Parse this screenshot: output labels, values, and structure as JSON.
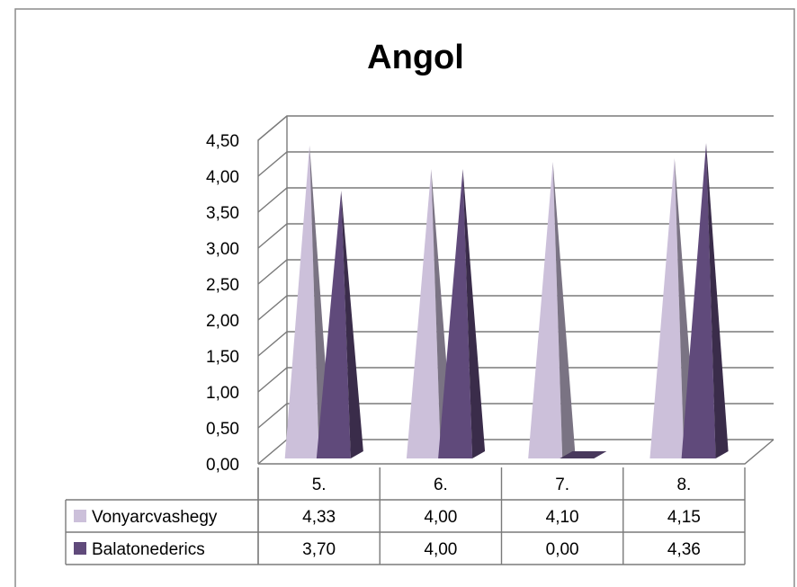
{
  "chart_data": {
    "type": "bar",
    "style": "3d-pyramid",
    "title": "Angol",
    "categories": [
      "5.",
      "6.",
      "7.",
      "8."
    ],
    "series": [
      {
        "name": "Vonyarcvashegy",
        "color": "#ccc0da",
        "values": [
          4.33,
          4.0,
          4.1,
          4.15
        ],
        "labels": [
          "4,33",
          "4,00",
          "4,10",
          "4,15"
        ]
      },
      {
        "name": "Balatonederics",
        "color": "#604a7b",
        "values": [
          3.7,
          4.0,
          0.0,
          4.36
        ],
        "labels": [
          "3,70",
          "4,00",
          "0,00",
          "4,36"
        ]
      }
    ],
    "yticks": [
      "0,00",
      "0,50",
      "1,00",
      "1,50",
      "2,00",
      "2,50",
      "3,00",
      "3,50",
      "4,00",
      "4,50"
    ],
    "ylim": [
      0,
      4.5
    ],
    "grid": true,
    "legend": "data-table"
  }
}
